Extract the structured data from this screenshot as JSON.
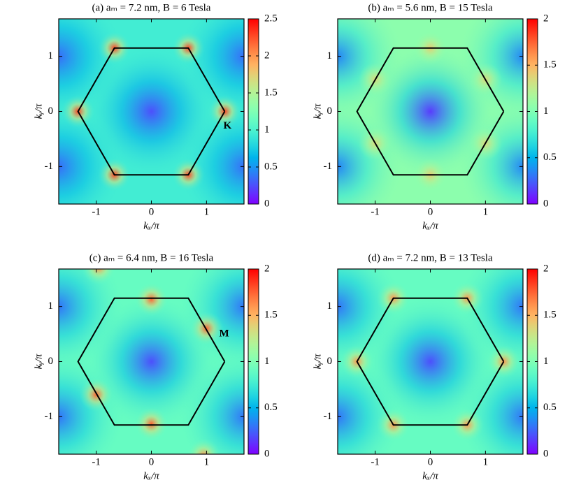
{
  "chart_data": [
    {
      "type": "heatmap",
      "title": "(a) aₘ = 7.2 nm, B = 6 Tesla",
      "xlabel": "kₓ/π",
      "ylabel": "kᵧ/π",
      "xlim": [
        -1.68,
        1.68
      ],
      "ylim": [
        -1.68,
        1.68
      ],
      "xticks": [
        -1,
        0,
        1
      ],
      "yticks": [
        -1,
        0,
        1
      ],
      "colormap": "rainbow",
      "clim": [
        0,
        2.5
      ],
      "cticks": [
        0,
        0.5,
        1,
        1.5,
        2,
        2.5
      ],
      "base_value": 0.95,
      "hexagon": {
        "x": [
          1.33,
          0.67,
          -0.67,
          -1.33,
          -0.67,
          0.67,
          1.33
        ],
        "y": [
          0,
          1.15,
          1.15,
          0,
          -1.15,
          -1.15,
          0
        ]
      },
      "peaks": [
        {
          "x": 1.33,
          "y": 0,
          "value": 2.3
        },
        {
          "x": 0.67,
          "y": 1.15,
          "value": 2.3
        },
        {
          "x": -0.67,
          "y": 1.15,
          "value": 2.3
        },
        {
          "x": -1.33,
          "y": 0,
          "value": 2.3
        },
        {
          "x": -0.67,
          "y": -1.15,
          "value": 2.3
        },
        {
          "x": 0.67,
          "y": -1.15,
          "value": 2.3
        }
      ],
      "minima": [
        {
          "x": 0,
          "y": 0,
          "value": 0.25
        },
        {
          "x": -1.68,
          "y": 1,
          "value": 0.35
        },
        {
          "x": -1.68,
          "y": -1,
          "value": 0.35
        },
        {
          "x": 1.68,
          "y": 1,
          "value": 0.35
        },
        {
          "x": 1.68,
          "y": -1,
          "value": 0.35
        }
      ],
      "annotations": [
        {
          "text": "K",
          "x": 1.38,
          "y": -0.27
        }
      ]
    },
    {
      "type": "heatmap",
      "title": "(b) aₘ = 5.6 nm, B = 15 Tesla",
      "xlabel": "kₓ/π",
      "ylabel": "kᵧ/π",
      "xlim": [
        -1.68,
        1.68
      ],
      "ylim": [
        -1.68,
        1.68
      ],
      "xticks": [
        -1,
        0,
        1
      ],
      "yticks": [
        -1,
        0,
        1
      ],
      "colormap": "rainbow",
      "clim": [
        0,
        2
      ],
      "cticks": [
        0,
        0.5,
        1,
        1.5,
        2
      ],
      "base_value": 1.05,
      "hexagon": {
        "x": [
          1.33,
          0.67,
          -0.67,
          -1.33,
          -0.67,
          0.67,
          1.33
        ],
        "y": [
          0,
          1.15,
          1.15,
          0,
          -1.15,
          -1.15,
          0
        ]
      },
      "peaks": [
        {
          "x": 0,
          "y": 1.15,
          "value": 1.4
        },
        {
          "x": 0,
          "y": -1.15,
          "value": 1.4
        },
        {
          "x": 1,
          "y": 0.58,
          "value": 1.35
        },
        {
          "x": -1,
          "y": 0.58,
          "value": 1.35
        },
        {
          "x": 1,
          "y": -0.58,
          "value": 1.35
        },
        {
          "x": -1,
          "y": -0.58,
          "value": 1.35
        }
      ],
      "minima": [
        {
          "x": 0,
          "y": 0,
          "value": 0.15
        },
        {
          "x": -1.68,
          "y": 1,
          "value": 0.35
        },
        {
          "x": -1.68,
          "y": -1,
          "value": 0.35
        },
        {
          "x": 1.68,
          "y": 1,
          "value": 0.35
        },
        {
          "x": 1.68,
          "y": -1,
          "value": 0.35
        }
      ],
      "annotations": []
    },
    {
      "type": "heatmap",
      "title": "(c) aₘ = 6.4 nm, B = 16 Tesla",
      "xlabel": "kₓ/π",
      "ylabel": "kᵧ/π",
      "xlim": [
        -1.68,
        1.68
      ],
      "ylim": [
        -1.68,
        1.68
      ],
      "xticks": [
        -1,
        0,
        1
      ],
      "yticks": [
        -1,
        0,
        1
      ],
      "colormap": "rainbow",
      "clim": [
        0,
        2
      ],
      "cticks": [
        0,
        0.5,
        1,
        1.5,
        2
      ],
      "base_value": 0.9,
      "hexagon": {
        "x": [
          1.33,
          0.67,
          -0.67,
          -1.33,
          -0.67,
          0.67,
          1.33
        ],
        "y": [
          0,
          1.15,
          1.15,
          0,
          -1.15,
          -1.15,
          0
        ]
      },
      "peaks": [
        {
          "x": 0,
          "y": 1.13,
          "value": 1.75
        },
        {
          "x": 0,
          "y": -1.13,
          "value": 1.75
        },
        {
          "x": 1,
          "y": 0.6,
          "value": 1.75
        },
        {
          "x": -1,
          "y": -0.6,
          "value": 1.75
        },
        {
          "x": -0.95,
          "y": 1.7,
          "value": 1.6
        },
        {
          "x": 0.95,
          "y": -1.7,
          "value": 1.6
        }
      ],
      "minima": [
        {
          "x": 0,
          "y": 0,
          "value": 0.2
        },
        {
          "x": -1.68,
          "y": 1,
          "value": 0.3
        },
        {
          "x": -1.68,
          "y": -1,
          "value": 0.3
        },
        {
          "x": 1.68,
          "y": 1,
          "value": 0.3
        },
        {
          "x": 1.68,
          "y": -1,
          "value": 0.3
        }
      ],
      "annotations": [
        {
          "text": "M",
          "x": 1.32,
          "y": 0.5
        }
      ]
    },
    {
      "type": "heatmap",
      "title": "(d) aₘ = 7.2 nm, B = 13 Tesla",
      "xlabel": "kₓ/π",
      "ylabel": "kᵧ/π",
      "xlim": [
        -1.68,
        1.68
      ],
      "ylim": [
        -1.68,
        1.68
      ],
      "xticks": [
        -1,
        0,
        1
      ],
      "yticks": [
        -1,
        0,
        1
      ],
      "colormap": "rainbow",
      "clim": [
        0,
        2
      ],
      "cticks": [
        0,
        0.5,
        1,
        1.5,
        2
      ],
      "base_value": 0.9,
      "hexagon": {
        "x": [
          1.33,
          0.67,
          -0.67,
          -1.33,
          -0.67,
          0.67,
          1.33
        ],
        "y": [
          0,
          1.15,
          1.15,
          0,
          -1.15,
          -1.15,
          0
        ]
      },
      "peaks": [
        {
          "x": 1.33,
          "y": 0,
          "value": 1.6
        },
        {
          "x": 0.67,
          "y": 1.15,
          "value": 1.6
        },
        {
          "x": -0.67,
          "y": 1.15,
          "value": 1.6
        },
        {
          "x": -1.33,
          "y": 0,
          "value": 1.6
        },
        {
          "x": -0.67,
          "y": -1.15,
          "value": 1.6
        },
        {
          "x": 0.67,
          "y": -1.15,
          "value": 1.6
        }
      ],
      "minima": [
        {
          "x": 0,
          "y": 0,
          "value": 0.2
        },
        {
          "x": -1.68,
          "y": 1,
          "value": 0.3
        },
        {
          "x": -1.68,
          "y": -1,
          "value": 0.3
        },
        {
          "x": 1.68,
          "y": 1,
          "value": 0.3
        },
        {
          "x": 1.68,
          "y": -1,
          "value": 0.3
        }
      ],
      "annotations": []
    }
  ]
}
